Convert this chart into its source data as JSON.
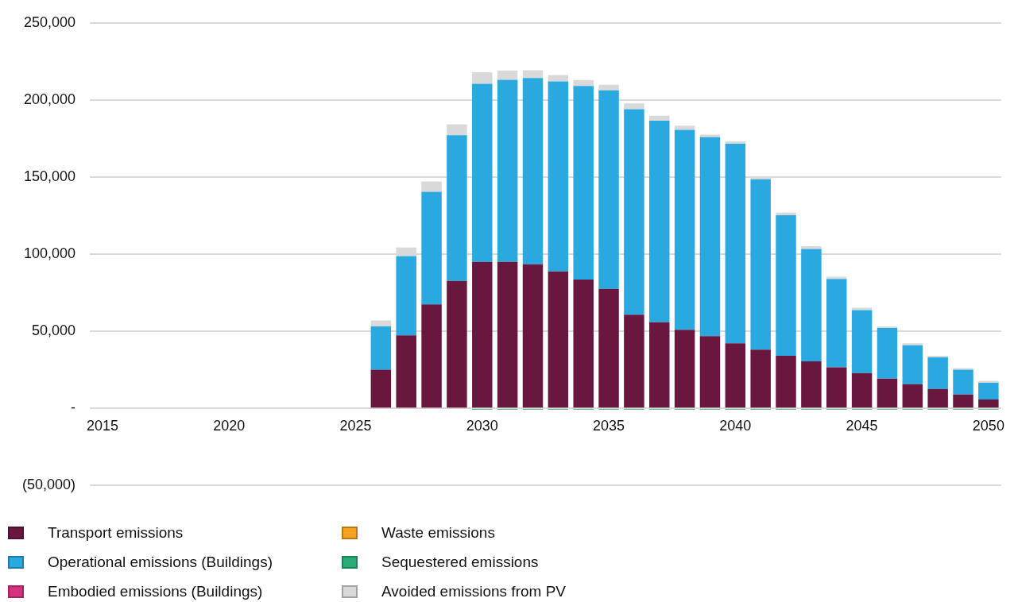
{
  "chart_data": {
    "type": "bar",
    "stacked": true,
    "categories": [
      "2015",
      null,
      null,
      null,
      null,
      "2020",
      null,
      null,
      null,
      null,
      "2025",
      null,
      null,
      null,
      null,
      "2030",
      null,
      null,
      null,
      null,
      "2035",
      null,
      null,
      null,
      null,
      "2040",
      null,
      null,
      null,
      null,
      "2045",
      null,
      null,
      null,
      null,
      "2050"
    ],
    "series": [
      {
        "name": "Transport emissions",
        "color": "#69173f",
        "values": [
          null,
          null,
          null,
          null,
          null,
          null,
          null,
          null,
          null,
          null,
          null,
          25000,
          47300,
          67400,
          82600,
          95000,
          95000,
          93400,
          88800,
          83500,
          77500,
          60700,
          55800,
          51000,
          46800,
          42200,
          38000,
          34100,
          30400,
          26600,
          22900,
          19200,
          15700,
          12500,
          9000,
          5700
        ]
      },
      {
        "name": "Operational emissions (Buildings)",
        "color": "#29a9e0",
        "values": [
          null,
          null,
          null,
          null,
          null,
          null,
          null,
          null,
          null,
          null,
          null,
          28100,
          51400,
          73100,
          94500,
          115500,
          118100,
          120800,
          123300,
          125600,
          128700,
          133300,
          130800,
          129600,
          129100,
          129400,
          110500,
          91100,
          72900,
          57300,
          40800,
          32900,
          25200,
          20500,
          16100,
          10900
        ]
      },
      {
        "name": "Embodied emissions (Buildings)",
        "color": "#d6317f",
        "values": [
          null,
          null,
          null,
          null,
          null,
          null,
          null,
          null,
          null,
          null,
          null,
          null,
          null,
          null,
          null,
          null,
          null,
          null,
          null,
          null,
          null,
          null,
          null,
          null,
          null,
          null,
          null,
          null,
          null,
          null,
          null,
          null,
          null,
          null,
          null,
          null
        ]
      },
      {
        "name": "Waste emissions",
        "color": "#f7a122",
        "values": [
          null,
          null,
          null,
          null,
          null,
          null,
          null,
          null,
          null,
          null,
          null,
          null,
          null,
          null,
          null,
          null,
          null,
          null,
          null,
          null,
          null,
          null,
          null,
          null,
          null,
          null,
          null,
          null,
          null,
          null,
          null,
          null,
          null,
          null,
          null,
          null
        ]
      },
      {
        "name": "Sequestered emissions",
        "color": "#2bab75",
        "values": [
          null,
          null,
          null,
          null,
          null,
          null,
          null,
          null,
          null,
          null,
          null,
          null,
          null,
          null,
          null,
          -1000,
          -1000,
          -1000,
          -1000,
          -1000,
          -1000,
          -1000,
          -1000,
          -1000,
          -1000,
          -1000,
          -1000,
          -1000,
          -1000,
          -1000,
          -1000,
          -1000,
          -1000,
          -1000,
          -1000,
          -1000
        ]
      },
      {
        "name": "Avoided emissions from PV",
        "color": "#d9d9d9",
        "values": [
          null,
          null,
          null,
          null,
          null,
          null,
          null,
          null,
          null,
          null,
          null,
          3900,
          5600,
          6600,
          7100,
          7400,
          6000,
          5100,
          4000,
          3800,
          3600,
          3700,
          3200,
          2700,
          1600,
          1600,
          1800,
          1800,
          1900,
          1400,
          1500,
          1000,
          1300,
          1100,
          1000,
          1300
        ]
      }
    ],
    "ylim": [
      -50000,
      250000
    ],
    "yticks": [
      {
        "value": -50000,
        "label": "(50,000)"
      },
      {
        "value": 0,
        "label": "-"
      },
      {
        "value": 50000,
        "label": "50,000"
      },
      {
        "value": 100000,
        "label": "100,000"
      },
      {
        "value": 150000,
        "label": "150,000"
      },
      {
        "value": 200000,
        "label": "200,000"
      },
      {
        "value": 250000,
        "label": "250,000"
      }
    ],
    "grid": "y",
    "legend": "bottom left"
  }
}
